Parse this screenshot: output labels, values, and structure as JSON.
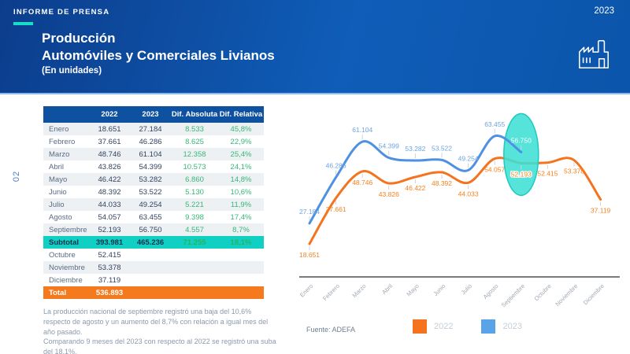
{
  "header": {
    "kicker": "INFORME DE PRENSA",
    "year": "2023",
    "title_line1": "Producción",
    "title_line2": "Automóviles y Comerciales Livianos",
    "title_line3": "(En unidades)"
  },
  "page_number": "02",
  "table": {
    "columns": [
      "",
      "2022",
      "2023",
      "Dif. Absoluta",
      "Dif. Relativa"
    ],
    "rows": [
      {
        "label": "Enero",
        "y2022": "18.651",
        "y2023": "27.184",
        "dif_abs": "8.533",
        "dif_rel": "45,8%",
        "type": "data"
      },
      {
        "label": "Febrero",
        "y2022": "37.661",
        "y2023": "46.286",
        "dif_abs": "8.625",
        "dif_rel": "22,9%",
        "type": "data"
      },
      {
        "label": "Marzo",
        "y2022": "48.746",
        "y2023": "61.104",
        "dif_abs": "12.358",
        "dif_rel": "25,4%",
        "type": "data"
      },
      {
        "label": "Abril",
        "y2022": "43.826",
        "y2023": "54.399",
        "dif_abs": "10.573",
        "dif_rel": "24,1%",
        "type": "data"
      },
      {
        "label": "Mayo",
        "y2022": "46.422",
        "y2023": "53.282",
        "dif_abs": "6.860",
        "dif_rel": "14,8%",
        "type": "data"
      },
      {
        "label": "Junio",
        "y2022": "48.392",
        "y2023": "53.522",
        "dif_abs": "5.130",
        "dif_rel": "10,6%",
        "type": "data"
      },
      {
        "label": "Julio",
        "y2022": "44.033",
        "y2023": "49.254",
        "dif_abs": "5.221",
        "dif_rel": "11,9%",
        "type": "data"
      },
      {
        "label": "Agosto",
        "y2022": "54.057",
        "y2023": "63.455",
        "dif_abs": "9.398",
        "dif_rel": "17,4%",
        "type": "data"
      },
      {
        "label": "Septiembre",
        "y2022": "52.193",
        "y2023": "56.750",
        "dif_abs": "4.557",
        "dif_rel": "8,7%",
        "type": "data"
      },
      {
        "label": "Subtotal",
        "y2022": "393.981",
        "y2023": "465.236",
        "dif_abs": "71.255",
        "dif_rel": "18,1%",
        "type": "subtotal"
      },
      {
        "label": "Octubre",
        "y2022": "52.415",
        "y2023": "",
        "dif_abs": "",
        "dif_rel": "",
        "type": "data"
      },
      {
        "label": "Noviembre",
        "y2022": "53.378",
        "y2023": "",
        "dif_abs": "",
        "dif_rel": "",
        "type": "data"
      },
      {
        "label": "Diciembre",
        "y2022": "37.119",
        "y2023": "",
        "dif_abs": "",
        "dif_rel": "",
        "type": "data"
      },
      {
        "label": "Total",
        "y2022": "536.893",
        "y2023": "",
        "dif_abs": "",
        "dif_rel": "",
        "type": "total"
      }
    ]
  },
  "footnote": "La producción nacional de septiembre registró una baja del 10,6%\nrespecto de agosto y un aumento del 8,7% con relación a igual mes del\naño pasado.\nComparando 9 meses del 2023 con respecto al 2022 se registró una suba\ndel 18,1%.",
  "source": "Fuente: ADEFA",
  "legend": [
    {
      "label": "2022",
      "color": "#F5731E"
    },
    {
      "label": "2023",
      "color": "#59A3E9"
    }
  ],
  "chart_data": {
    "type": "line",
    "title": "",
    "xlabel": "",
    "ylabel": "",
    "categories": [
      "Enero",
      "Febrero",
      "Marzo",
      "Abril",
      "Mayo",
      "Junio",
      "Julio",
      "Agosto",
      "Septiembre",
      "Octubre",
      "Noviembre",
      "Diciembre"
    ],
    "series": [
      {
        "name": "2022",
        "color": "#F5731E",
        "label_color": "#F5821E",
        "label_position": "below",
        "values": [
          18651,
          37661,
          48746,
          43826,
          46422,
          48392,
          44033,
          54057,
          52193,
          52415,
          53378,
          37119
        ],
        "labels": [
          "18.651",
          "37.661",
          "48.746",
          "43.826",
          "46.422",
          "48.392",
          "44.033",
          "54.057",
          "52.193",
          "52.415",
          "53.378",
          "37.119"
        ]
      },
      {
        "name": "2023",
        "color": "#4E90E2",
        "label_color": "#6FA3E2",
        "label_position": "above",
        "values": [
          27184,
          46286,
          61104,
          54399,
          53282,
          53522,
          49254,
          63455,
          56750
        ],
        "labels": [
          "27.184",
          "46.286",
          "61.104",
          "54.399",
          "53.282",
          "53.522",
          "49.254",
          "63.455",
          "56.750"
        ]
      }
    ],
    "highlight": {
      "category": "Septiembre",
      "shape": "ellipse",
      "fill": "#3DDFD5",
      "stroke": "#1FC9BF"
    },
    "ylim": [
      15000,
      66000
    ],
    "grid": false,
    "legend_position": "bottom"
  },
  "colors": {
    "header_gradient_start": "#0C3D8C",
    "header_gradient_end": "#0B55AB",
    "accent_teal": "#14DFC9",
    "table_header_blue": "#0E51A0",
    "subtotal_teal": "#10CFC3",
    "total_orange": "#F5791D",
    "diff_green": "#35B877",
    "series_2022_orange": "#F5731E",
    "series_2023_blue": "#4E90E2"
  }
}
